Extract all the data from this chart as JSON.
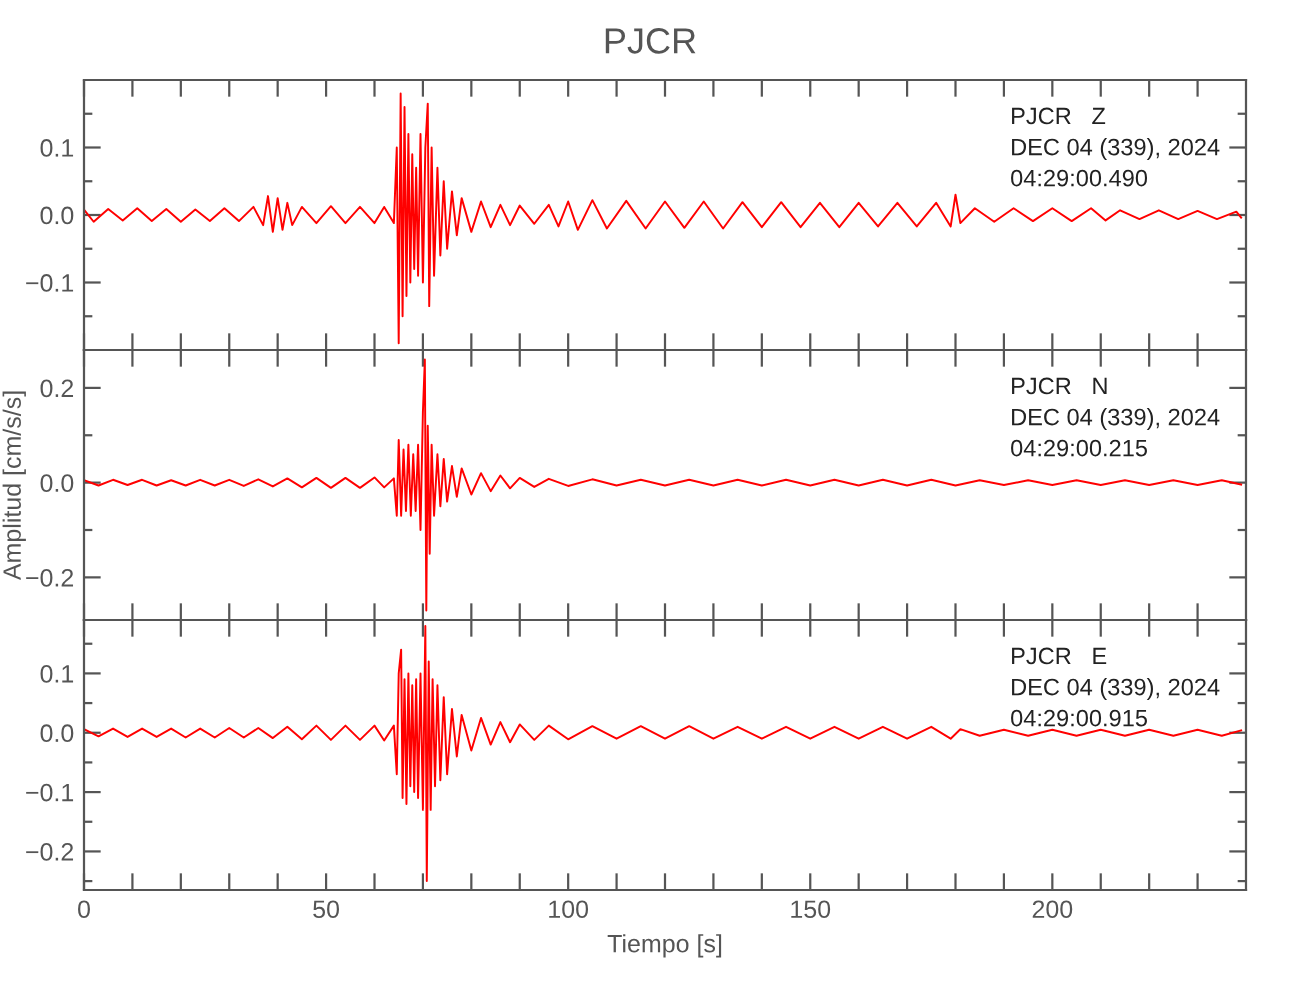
{
  "chart_data": [
    {
      "type": "line",
      "title": "PJCR",
      "annotations": [
        "PJCR   Z",
        "DEC 04 (339), 2024",
        "04:29:00.490"
      ],
      "tick_labels": "y",
      "grid": false,
      "legend": false,
      "marker": "none",
      "line_style": "solid",
      "xlim": [
        0,
        240
      ],
      "ylim": [
        -0.2,
        0.2
      ],
      "xticks": [
        {
          "value": 0,
          "label": null
        },
        {
          "value": 10,
          "label": null
        },
        {
          "value": 20,
          "label": null
        },
        {
          "value": 30,
          "label": null
        },
        {
          "value": 40,
          "label": null
        },
        {
          "value": 50,
          "label": null
        },
        {
          "value": 60,
          "label": null
        },
        {
          "value": 70,
          "label": null
        },
        {
          "value": 80,
          "label": null
        },
        {
          "value": 90,
          "label": null
        },
        {
          "value": 100,
          "label": null
        },
        {
          "value": 110,
          "label": null
        },
        {
          "value": 120,
          "label": null
        },
        {
          "value": 130,
          "label": null
        },
        {
          "value": 140,
          "label": null
        },
        {
          "value": 150,
          "label": null
        },
        {
          "value": 160,
          "label": null
        },
        {
          "value": 170,
          "label": null
        },
        {
          "value": 180,
          "label": null
        },
        {
          "value": 190,
          "label": null
        },
        {
          "value": 200,
          "label": null
        },
        {
          "value": 210,
          "label": null
        },
        {
          "value": 220,
          "label": null
        },
        {
          "value": 230,
          "label": null
        }
      ],
      "yticks": [
        {
          "value": -0.15,
          "label": null
        },
        {
          "value": -0.1,
          "label": "−0.1"
        },
        {
          "value": -0.05,
          "label": null
        },
        {
          "value": 0.0,
          "label": "0.0"
        },
        {
          "value": 0.05,
          "label": null
        },
        {
          "value": 0.1,
          "label": "0.1"
        },
        {
          "value": 0.15,
          "label": null
        }
      ],
      "series": [
        {
          "color": "#ff0000",
          "x": [
            0,
            2,
            5,
            8,
            11,
            14,
            17,
            20,
            23,
            26,
            29,
            32,
            35,
            37,
            38,
            39,
            40,
            41,
            42,
            43,
            45,
            48,
            51,
            54,
            57,
            60,
            62,
            64,
            64.6,
            65,
            65.4,
            65.8,
            66.2,
            66.6,
            67,
            67.4,
            67.8,
            68.2,
            68.6,
            69,
            69.5,
            70,
            70.5,
            71,
            71.3,
            71.8,
            72.3,
            73,
            73.6,
            74.3,
            75,
            76,
            77,
            78,
            80,
            82,
            84,
            86,
            88,
            90,
            93,
            96,
            98,
            100,
            102,
            105,
            108,
            112,
            116,
            120,
            124,
            128,
            132,
            136,
            140,
            144,
            148,
            152,
            156,
            160,
            164,
            168,
            172,
            176,
            179,
            180,
            181,
            184,
            188,
            192,
            196,
            200,
            204,
            208,
            211,
            214,
            218,
            222,
            226,
            230,
            234,
            238,
            239
          ],
          "values": [
            0.008,
            -0.01,
            0.009,
            -0.008,
            0.01,
            -0.009,
            0.009,
            -0.01,
            0.008,
            -0.009,
            0.01,
            -0.009,
            0.012,
            -0.015,
            0.028,
            -0.025,
            0.025,
            -0.022,
            0.018,
            -0.015,
            0.012,
            -0.012,
            0.013,
            -0.012,
            0.012,
            -0.012,
            0.012,
            -0.012,
            0.1,
            -0.19,
            0.18,
            -0.15,
            0.16,
            -0.12,
            0.12,
            -0.1,
            0.09,
            -0.08,
            0.07,
            -0.09,
            0.12,
            -0.1,
            0.1,
            0.165,
            -0.135,
            0.1,
            -0.09,
            0.07,
            -0.06,
            0.05,
            -0.05,
            0.035,
            -0.03,
            0.025,
            -0.025,
            0.02,
            -0.018,
            0.015,
            -0.015,
            0.014,
            -0.013,
            0.015,
            -0.017,
            0.02,
            -0.022,
            0.022,
            -0.02,
            0.021,
            -0.02,
            0.02,
            -0.019,
            0.02,
            -0.02,
            0.019,
            -0.018,
            0.019,
            -0.018,
            0.018,
            -0.018,
            0.018,
            -0.017,
            0.018,
            -0.017,
            0.018,
            -0.017,
            0.03,
            -0.012,
            0.01,
            -0.01,
            0.01,
            -0.009,
            0.01,
            -0.009,
            0.01,
            -0.008,
            0.007,
            -0.006,
            0.007,
            -0.006,
            0.006,
            -0.006,
            0.005,
            -0.004
          ]
        }
      ]
    },
    {
      "type": "line",
      "ylabel": "Amplitud [cm/s/s]",
      "annotations": [
        "PJCR   N",
        "DEC 04 (339), 2024",
        "04:29:00.215"
      ],
      "tick_labels": "y",
      "grid": false,
      "legend": false,
      "marker": "none",
      "line_style": "solid",
      "xlim": [
        0,
        240
      ],
      "ylim": [
        -0.29,
        0.28
      ],
      "xticks": [
        {
          "value": 0,
          "label": null
        },
        {
          "value": 10,
          "label": null
        },
        {
          "value": 20,
          "label": null
        },
        {
          "value": 30,
          "label": null
        },
        {
          "value": 40,
          "label": null
        },
        {
          "value": 50,
          "label": null
        },
        {
          "value": 60,
          "label": null
        },
        {
          "value": 70,
          "label": null
        },
        {
          "value": 80,
          "label": null
        },
        {
          "value": 90,
          "label": null
        },
        {
          "value": 100,
          "label": null
        },
        {
          "value": 110,
          "label": null
        },
        {
          "value": 120,
          "label": null
        },
        {
          "value": 130,
          "label": null
        },
        {
          "value": 140,
          "label": null
        },
        {
          "value": 150,
          "label": null
        },
        {
          "value": 160,
          "label": null
        },
        {
          "value": 170,
          "label": null
        },
        {
          "value": 180,
          "label": null
        },
        {
          "value": 190,
          "label": null
        },
        {
          "value": 200,
          "label": null
        },
        {
          "value": 210,
          "label": null
        },
        {
          "value": 220,
          "label": null
        },
        {
          "value": 230,
          "label": null
        }
      ],
      "yticks": [
        {
          "value": -0.2,
          "label": "−0.2"
        },
        {
          "value": -0.1,
          "label": null
        },
        {
          "value": 0.0,
          "label": "0.0"
        },
        {
          "value": 0.1,
          "label": null
        },
        {
          "value": 0.2,
          "label": "0.2"
        }
      ],
      "series": [
        {
          "color": "#ff0000",
          "x": [
            0,
            3,
            6,
            9,
            12,
            15,
            18,
            21,
            24,
            27,
            30,
            33,
            36,
            39,
            42,
            45,
            48,
            51,
            54,
            57,
            60,
            62,
            64,
            64.6,
            65,
            65.5,
            66,
            66.5,
            67,
            67.5,
            68,
            68.5,
            69,
            69.5,
            70,
            70.4,
            70.7,
            71,
            71.4,
            71.8,
            72.3,
            73,
            73.6,
            74.3,
            75,
            76,
            77,
            78,
            80,
            82,
            84,
            86,
            88,
            90,
            93,
            96,
            100,
            105,
            110,
            115,
            120,
            125,
            130,
            135,
            140,
            145,
            150,
            155,
            160,
            165,
            170,
            175,
            180,
            185,
            190,
            195,
            200,
            205,
            210,
            215,
            220,
            225,
            230,
            235,
            239
          ],
          "values": [
            0.005,
            -0.006,
            0.006,
            -0.005,
            0.006,
            -0.006,
            0.005,
            -0.006,
            0.006,
            -0.006,
            0.006,
            -0.007,
            0.007,
            -0.008,
            0.009,
            -0.01,
            0.01,
            -0.011,
            0.01,
            -0.011,
            0.011,
            -0.01,
            0.009,
            -0.07,
            0.09,
            -0.07,
            0.07,
            -0.06,
            0.08,
            -0.07,
            0.06,
            -0.06,
            0.08,
            -0.1,
            0.15,
            0.26,
            -0.27,
            0.12,
            -0.15,
            0.08,
            -0.07,
            0.06,
            -0.05,
            0.05,
            -0.04,
            0.035,
            -0.03,
            0.03,
            -0.025,
            0.02,
            -0.018,
            0.015,
            -0.012,
            0.01,
            -0.009,
            0.008,
            -0.007,
            0.007,
            -0.006,
            0.006,
            -0.006,
            0.006,
            -0.006,
            0.006,
            -0.006,
            0.006,
            -0.006,
            0.006,
            -0.006,
            0.006,
            -0.006,
            0.006,
            -0.006,
            0.005,
            -0.005,
            0.005,
            -0.005,
            0.005,
            -0.005,
            0.005,
            -0.005,
            0.005,
            -0.005,
            0.005,
            -0.004
          ]
        }
      ]
    },
    {
      "type": "line",
      "xlabel": "Tiempo [s]",
      "annotations": [
        "PJCR   E",
        "DEC 04 (339), 2024",
        "04:29:00.915"
      ],
      "grid": false,
      "legend": false,
      "marker": "none",
      "line_style": "solid",
      "xlim": [
        0,
        240
      ],
      "ylim": [
        -0.265,
        0.19
      ],
      "xticks": [
        {
          "value": 0,
          "label": "0"
        },
        {
          "value": 10,
          "label": null
        },
        {
          "value": 20,
          "label": null
        },
        {
          "value": 30,
          "label": null
        },
        {
          "value": 40,
          "label": null
        },
        {
          "value": 50,
          "label": "50"
        },
        {
          "value": 60,
          "label": null
        },
        {
          "value": 70,
          "label": null
        },
        {
          "value": 80,
          "label": null
        },
        {
          "value": 90,
          "label": null
        },
        {
          "value": 100,
          "label": "100"
        },
        {
          "value": 110,
          "label": null
        },
        {
          "value": 120,
          "label": null
        },
        {
          "value": 130,
          "label": null
        },
        {
          "value": 140,
          "label": null
        },
        {
          "value": 150,
          "label": "150"
        },
        {
          "value": 160,
          "label": null
        },
        {
          "value": 170,
          "label": null
        },
        {
          "value": 180,
          "label": null
        },
        {
          "value": 190,
          "label": null
        },
        {
          "value": 200,
          "label": "200"
        },
        {
          "value": 210,
          "label": null
        },
        {
          "value": 220,
          "label": null
        },
        {
          "value": 230,
          "label": null
        }
      ],
      "yticks": [
        {
          "value": -0.25,
          "label": null
        },
        {
          "value": -0.2,
          "label": "−0.2"
        },
        {
          "value": -0.15,
          "label": null
        },
        {
          "value": -0.1,
          "label": "−0.1"
        },
        {
          "value": -0.05,
          "label": null
        },
        {
          "value": 0.0,
          "label": "0.0"
        },
        {
          "value": 0.05,
          "label": null
        },
        {
          "value": 0.1,
          "label": "0.1"
        },
        {
          "value": 0.15,
          "label": null
        }
      ],
      "series": [
        {
          "color": "#ff0000",
          "x": [
            0,
            3,
            6,
            9,
            12,
            15,
            18,
            21,
            24,
            27,
            30,
            33,
            36,
            39,
            42,
            45,
            48,
            51,
            54,
            57,
            60,
            62,
            64,
            64.6,
            65,
            65.5,
            65.8,
            66.2,
            66.6,
            67,
            67.4,
            67.8,
            68.2,
            68.6,
            69,
            69.5,
            70,
            70.5,
            70.8,
            71.2,
            71.6,
            72,
            72.5,
            73,
            73.6,
            74.3,
            75,
            76,
            77,
            78,
            80,
            82,
            84,
            86,
            88,
            90,
            93,
            96,
            100,
            105,
            110,
            115,
            120,
            125,
            130,
            135,
            140,
            145,
            150,
            155,
            160,
            165,
            170,
            175,
            179,
            181,
            185,
            190,
            195,
            200,
            205,
            210,
            215,
            220,
            225,
            230,
            235,
            239
          ],
          "values": [
            0.006,
            -0.006,
            0.007,
            -0.007,
            0.007,
            -0.007,
            0.007,
            -0.008,
            0.007,
            -0.008,
            0.008,
            -0.008,
            0.008,
            -0.009,
            0.01,
            -0.011,
            0.012,
            -0.012,
            0.012,
            -0.012,
            0.012,
            -0.013,
            0.012,
            -0.07,
            0.1,
            0.14,
            -0.11,
            0.09,
            -0.12,
            0.1,
            -0.09,
            0.08,
            -0.1,
            0.09,
            -0.11,
            0.1,
            -0.13,
            0.18,
            -0.25,
            0.12,
            -0.13,
            0.09,
            -0.09,
            0.08,
            -0.08,
            0.06,
            -0.07,
            0.04,
            -0.04,
            0.03,
            -0.03,
            0.025,
            -0.02,
            0.018,
            -0.016,
            0.014,
            -0.012,
            0.012,
            -0.011,
            0.011,
            -0.01,
            0.011,
            -0.01,
            0.011,
            -0.01,
            0.01,
            -0.01,
            0.01,
            -0.01,
            0.01,
            -0.01,
            0.01,
            -0.01,
            0.01,
            -0.01,
            0.006,
            -0.005,
            0.005,
            -0.005,
            0.005,
            -0.005,
            0.005,
            -0.005,
            0.005,
            -0.005,
            0.005,
            -0.005,
            0.004
          ]
        }
      ]
    }
  ]
}
